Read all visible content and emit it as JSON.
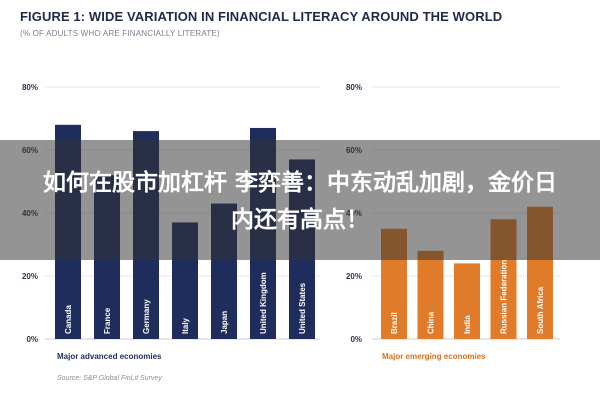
{
  "title": "FIGURE 1: WIDE VARIATION IN FINANCIAL LITERACY AROUND THE WORLD",
  "subtitle": "(% OF ADULTS WHO ARE FINANCIALLY LITERATE)",
  "source": "Source: S&P Global FinLit Survey",
  "overlay": {
    "line1": "如何在股市加杠杆 李弈善：中东动乱加剧，金价日",
    "line2": "内还有高点！"
  },
  "colors": {
    "advanced": "#1f2d5c",
    "emerging": "#e07b2a",
    "axis_text": "#2b3352",
    "grid": "#e4e6ec",
    "group_label_advanced": "#1f2d5c",
    "group_label_emerging": "#d96f1f"
  },
  "chart_data": [
    {
      "type": "bar",
      "orientation": "vertical",
      "group_label": "Major advanced economies",
      "categories": [
        "Canada",
        "France",
        "Germany",
        "Italy",
        "Japan",
        "United Kingdom",
        "United States"
      ],
      "values": [
        68,
        52,
        66,
        37,
        43,
        67,
        57
      ],
      "ylim": [
        0,
        80
      ],
      "yticks": [
        "0%",
        "20%",
        "40%",
        "60%",
        "80%"
      ],
      "grid": true
    },
    {
      "type": "bar",
      "orientation": "vertical",
      "group_label": "Major emerging economies",
      "categories": [
        "Brazil",
        "China",
        "India",
        "Russian Federation",
        "South Africa"
      ],
      "values": [
        35,
        28,
        24,
        38,
        42
      ],
      "ylim": [
        0,
        80
      ],
      "yticks": [
        "0%",
        "20%",
        "40%",
        "60%",
        "80%"
      ],
      "grid": true
    }
  ]
}
